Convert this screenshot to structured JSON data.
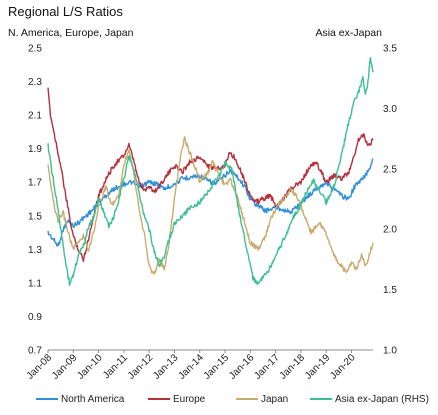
{
  "chart_data": {
    "type": "line",
    "title": "Regional L/S Ratios",
    "left_axis_label": "N. America, Europe, Japan",
    "right_axis_label": "Asia ex-Japan",
    "x_ticks": [
      "Jan-08",
      "Jan-09",
      "Jan-10",
      "Jan-11",
      "Jan-12",
      "Jan-13",
      "Jan-14",
      "Jan-15",
      "Jan-16",
      "Jan-17",
      "Jan-18",
      "Jan-19",
      "Jan-20"
    ],
    "x_range": [
      2008.0,
      2020.85
    ],
    "y_left": {
      "min": 0.7,
      "max": 2.5,
      "ticks": [
        "0.7",
        "0.9",
        "1.1",
        "1.3",
        "1.5",
        "1.7",
        "1.9",
        "2.1",
        "2.3",
        "2.5"
      ]
    },
    "y_right": {
      "min": 1.0,
      "max": 3.5,
      "ticks": [
        "1.0",
        "1.5",
        "2.0",
        "2.5",
        "3.0",
        "3.5"
      ]
    },
    "grid": false,
    "legend_position": "bottom",
    "series": [
      {
        "name": "North America",
        "axis": "left",
        "color": "#2f8fd8",
        "points": [
          [
            2008.0,
            1.4
          ],
          [
            2008.2,
            1.36
          ],
          [
            2008.4,
            1.32
          ],
          [
            2008.6,
            1.42
          ],
          [
            2008.8,
            1.47
          ],
          [
            2009.0,
            1.44
          ],
          [
            2009.2,
            1.46
          ],
          [
            2009.5,
            1.5
          ],
          [
            2009.8,
            1.54
          ],
          [
            2010.0,
            1.58
          ],
          [
            2010.3,
            1.62
          ],
          [
            2010.6,
            1.66
          ],
          [
            2011.0,
            1.69
          ],
          [
            2011.3,
            1.7
          ],
          [
            2011.6,
            1.67
          ],
          [
            2012.0,
            1.7
          ],
          [
            2012.3,
            1.69
          ],
          [
            2012.6,
            1.66
          ],
          [
            2013.0,
            1.69
          ],
          [
            2013.3,
            1.72
          ],
          [
            2013.6,
            1.73
          ],
          [
            2014.0,
            1.74
          ],
          [
            2014.3,
            1.71
          ],
          [
            2014.6,
            1.69
          ],
          [
            2015.0,
            1.74
          ],
          [
            2015.2,
            1.77
          ],
          [
            2015.5,
            1.73
          ],
          [
            2015.8,
            1.67
          ],
          [
            2016.0,
            1.6
          ],
          [
            2016.3,
            1.56
          ],
          [
            2016.6,
            1.53
          ],
          [
            2017.0,
            1.55
          ],
          [
            2017.3,
            1.54
          ],
          [
            2017.6,
            1.52
          ],
          [
            2018.0,
            1.58
          ],
          [
            2018.3,
            1.62
          ],
          [
            2018.6,
            1.66
          ],
          [
            2019.0,
            1.7
          ],
          [
            2019.3,
            1.66
          ],
          [
            2019.6,
            1.62
          ],
          [
            2019.9,
            1.6
          ],
          [
            2020.1,
            1.67
          ],
          [
            2020.3,
            1.7
          ],
          [
            2020.5,
            1.73
          ],
          [
            2020.7,
            1.78
          ],
          [
            2020.85,
            1.84
          ]
        ]
      },
      {
        "name": "Europe",
        "axis": "left",
        "color": "#b5303d",
        "points": [
          [
            2008.0,
            2.25
          ],
          [
            2008.1,
            2.1
          ],
          [
            2008.3,
            1.95
          ],
          [
            2008.5,
            1.8
          ],
          [
            2008.7,
            1.62
          ],
          [
            2008.9,
            1.45
          ],
          [
            2009.0,
            1.38
          ],
          [
            2009.2,
            1.3
          ],
          [
            2009.4,
            1.24
          ],
          [
            2009.6,
            1.36
          ],
          [
            2009.8,
            1.5
          ],
          [
            2010.0,
            1.62
          ],
          [
            2010.3,
            1.72
          ],
          [
            2010.6,
            1.8
          ],
          [
            2011.0,
            1.86
          ],
          [
            2011.2,
            1.92
          ],
          [
            2011.4,
            1.82
          ],
          [
            2011.6,
            1.7
          ],
          [
            2011.8,
            1.65
          ],
          [
            2012.0,
            1.68
          ],
          [
            2012.2,
            1.64
          ],
          [
            2012.5,
            1.7
          ],
          [
            2012.8,
            1.76
          ],
          [
            2013.0,
            1.8
          ],
          [
            2013.3,
            1.76
          ],
          [
            2013.6,
            1.82
          ],
          [
            2014.0,
            1.85
          ],
          [
            2014.3,
            1.8
          ],
          [
            2014.6,
            1.78
          ],
          [
            2015.0,
            1.8
          ],
          [
            2015.2,
            1.88
          ],
          [
            2015.4,
            1.84
          ],
          [
            2015.6,
            1.78
          ],
          [
            2015.8,
            1.7
          ],
          [
            2016.0,
            1.62
          ],
          [
            2016.2,
            1.58
          ],
          [
            2016.5,
            1.6
          ],
          [
            2016.8,
            1.62
          ],
          [
            2017.0,
            1.56
          ],
          [
            2017.3,
            1.6
          ],
          [
            2017.6,
            1.66
          ],
          [
            2018.0,
            1.7
          ],
          [
            2018.3,
            1.78
          ],
          [
            2018.6,
            1.82
          ],
          [
            2018.8,
            1.76
          ],
          [
            2019.0,
            1.7
          ],
          [
            2019.3,
            1.74
          ],
          [
            2019.6,
            1.72
          ],
          [
            2019.9,
            1.76
          ],
          [
            2020.1,
            1.86
          ],
          [
            2020.3,
            1.96
          ],
          [
            2020.5,
            1.98
          ],
          [
            2020.65,
            1.92
          ],
          [
            2020.85,
            1.95
          ]
        ]
      },
      {
        "name": "Japan",
        "axis": "left",
        "color": "#c7ad6e",
        "points": [
          [
            2008.0,
            1.8
          ],
          [
            2008.1,
            1.7
          ],
          [
            2008.25,
            1.55
          ],
          [
            2008.4,
            1.46
          ],
          [
            2008.6,
            1.52
          ],
          [
            2008.8,
            1.4
          ],
          [
            2009.0,
            1.3
          ],
          [
            2009.2,
            1.34
          ],
          [
            2009.4,
            1.38
          ],
          [
            2009.6,
            1.3
          ],
          [
            2009.8,
            1.4
          ],
          [
            2010.0,
            1.55
          ],
          [
            2010.3,
            1.68
          ],
          [
            2010.5,
            1.56
          ],
          [
            2010.8,
            1.62
          ],
          [
            2011.0,
            1.8
          ],
          [
            2011.2,
            1.9
          ],
          [
            2011.4,
            1.75
          ],
          [
            2011.6,
            1.55
          ],
          [
            2011.8,
            1.4
          ],
          [
            2012.0,
            1.2
          ],
          [
            2012.2,
            1.15
          ],
          [
            2012.4,
            1.24
          ],
          [
            2012.6,
            1.18
          ],
          [
            2012.8,
            1.35
          ],
          [
            2013.0,
            1.6
          ],
          [
            2013.2,
            1.82
          ],
          [
            2013.4,
            1.96
          ],
          [
            2013.6,
            1.88
          ],
          [
            2013.8,
            1.8
          ],
          [
            2014.0,
            1.7
          ],
          [
            2014.3,
            1.75
          ],
          [
            2014.5,
            1.82
          ],
          [
            2014.7,
            1.76
          ],
          [
            2015.0,
            1.68
          ],
          [
            2015.2,
            1.72
          ],
          [
            2015.5,
            1.6
          ],
          [
            2015.8,
            1.45
          ],
          [
            2016.0,
            1.34
          ],
          [
            2016.3,
            1.3
          ],
          [
            2016.6,
            1.38
          ],
          [
            2016.8,
            1.48
          ],
          [
            2017.0,
            1.54
          ],
          [
            2017.3,
            1.6
          ],
          [
            2017.6,
            1.66
          ],
          [
            2017.9,
            1.6
          ],
          [
            2018.1,
            1.52
          ],
          [
            2018.4,
            1.4
          ],
          [
            2018.7,
            1.46
          ],
          [
            2019.0,
            1.4
          ],
          [
            2019.2,
            1.3
          ],
          [
            2019.4,
            1.24
          ],
          [
            2019.6,
            1.2
          ],
          [
            2019.8,
            1.16
          ],
          [
            2020.0,
            1.22
          ],
          [
            2020.2,
            1.18
          ],
          [
            2020.4,
            1.26
          ],
          [
            2020.55,
            1.2
          ],
          [
            2020.7,
            1.26
          ],
          [
            2020.85,
            1.34
          ]
        ]
      },
      {
        "name": "Asia ex-Japan (RHS)",
        "axis": "right",
        "color": "#3dbf94",
        "points": [
          [
            2008.0,
            2.7
          ],
          [
            2008.1,
            2.55
          ],
          [
            2008.25,
            2.35
          ],
          [
            2008.4,
            2.15
          ],
          [
            2008.55,
            1.95
          ],
          [
            2008.7,
            1.72
          ],
          [
            2008.85,
            1.55
          ],
          [
            2009.0,
            1.62
          ],
          [
            2009.2,
            1.78
          ],
          [
            2009.4,
            1.86
          ],
          [
            2009.6,
            2.02
          ],
          [
            2009.8,
            2.1
          ],
          [
            2010.0,
            2.25
          ],
          [
            2010.2,
            2.15
          ],
          [
            2010.4,
            2.02
          ],
          [
            2010.6,
            2.1
          ],
          [
            2010.8,
            2.25
          ],
          [
            2011.0,
            2.42
          ],
          [
            2011.2,
            2.6
          ],
          [
            2011.4,
            2.5
          ],
          [
            2011.6,
            2.3
          ],
          [
            2011.8,
            2.12
          ],
          [
            2012.0,
            2.0
          ],
          [
            2012.2,
            1.82
          ],
          [
            2012.4,
            1.7
          ],
          [
            2012.6,
            1.78
          ],
          [
            2012.8,
            1.92
          ],
          [
            2013.0,
            2.05
          ],
          [
            2013.3,
            2.1
          ],
          [
            2013.6,
            2.18
          ],
          [
            2014.0,
            2.22
          ],
          [
            2014.3,
            2.3
          ],
          [
            2014.6,
            2.4
          ],
          [
            2014.8,
            2.45
          ],
          [
            2015.0,
            2.55
          ],
          [
            2015.3,
            2.48
          ],
          [
            2015.5,
            2.2
          ],
          [
            2015.7,
            2.0
          ],
          [
            2015.9,
            1.8
          ],
          [
            2016.1,
            1.6
          ],
          [
            2016.3,
            1.55
          ],
          [
            2016.6,
            1.62
          ],
          [
            2016.9,
            1.72
          ],
          [
            2017.1,
            1.82
          ],
          [
            2017.4,
            1.95
          ],
          [
            2017.7,
            2.1
          ],
          [
            2018.0,
            2.2
          ],
          [
            2018.3,
            2.35
          ],
          [
            2018.5,
            2.4
          ],
          [
            2018.8,
            2.3
          ],
          [
            2019.0,
            2.22
          ],
          [
            2019.3,
            2.35
          ],
          [
            2019.5,
            2.52
          ],
          [
            2019.7,
            2.7
          ],
          [
            2019.9,
            2.9
          ],
          [
            2020.1,
            3.05
          ],
          [
            2020.3,
            3.15
          ],
          [
            2020.45,
            3.25
          ],
          [
            2020.55,
            3.1
          ],
          [
            2020.65,
            3.22
          ],
          [
            2020.75,
            3.42
          ],
          [
            2020.85,
            3.3
          ]
        ]
      }
    ]
  }
}
